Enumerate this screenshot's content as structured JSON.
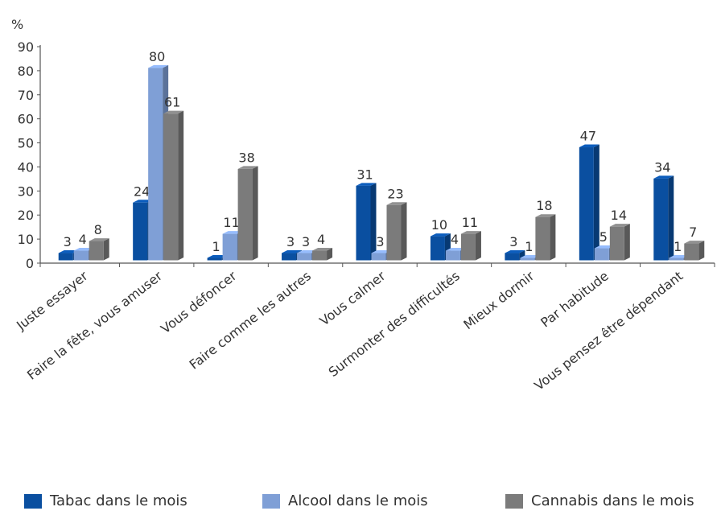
{
  "chart_data": {
    "type": "bar",
    "title": "",
    "ylabel": "%",
    "xlabel": "",
    "ylim": [
      0,
      90
    ],
    "yticks": [
      0,
      10,
      20,
      30,
      40,
      50,
      60,
      70,
      80,
      90
    ],
    "categories": [
      "Juste essayer",
      "Faire la fête, vous amuser",
      "Vous défoncer",
      "Faire comme les autres",
      "Vous calmer",
      "Surmonter des difficultés",
      "Mieux dormir",
      "Par habitude",
      "Vous pensez être dépendant"
    ],
    "series": [
      {
        "name": "Tabac dans le mois",
        "color": "#0a4fa0",
        "values": [
          3,
          24,
          1,
          3,
          31,
          10,
          3,
          47,
          34
        ]
      },
      {
        "name": "Alcool dans le mois",
        "color": "#7f9fd6",
        "values": [
          4,
          80,
          11,
          3,
          3,
          4,
          1,
          5,
          1
        ]
      },
      {
        "name": "Cannabis dans le mois",
        "color": "#7b7b7b",
        "values": [
          8,
          61,
          38,
          4,
          23,
          11,
          18,
          14,
          7
        ]
      }
    ],
    "grid": false,
    "legend_position": "bottom"
  }
}
